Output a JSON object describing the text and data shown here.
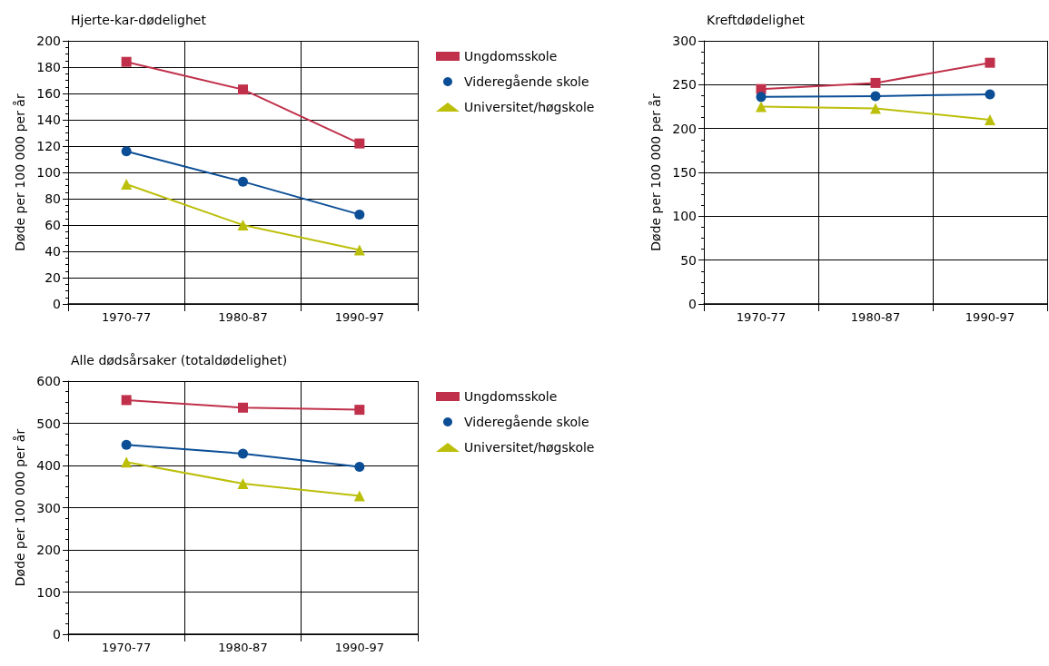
{
  "chart_data": [
    {
      "type": "line",
      "title": "Hjerte-kar-dødelighet",
      "ylabel": "Døde per 100 000 per år",
      "categories": [
        "1970-77",
        "1980-87",
        "1990-97"
      ],
      "ylim": [
        0,
        200
      ],
      "yticks": [
        0,
        20,
        40,
        60,
        80,
        100,
        120,
        140,
        160,
        180,
        200
      ],
      "grid": true,
      "legend": "right",
      "line_style": "solid",
      "series": [
        {
          "name": "Ungdomsskole",
          "color": "#c0304a",
          "marker": "square",
          "values": [
            184,
            163,
            122
          ]
        },
        {
          "name": "Videregående skole",
          "color": "#0b4e96",
          "marker": "circle",
          "values": [
            116,
            93,
            68
          ]
        },
        {
          "name": "Universitet/høgskole",
          "color": "#bcbf0a",
          "marker": "triangle",
          "values": [
            91,
            60,
            41
          ]
        }
      ]
    },
    {
      "type": "line",
      "title": "Kreftdødelighet",
      "ylabel": "Døde per 100 000 per år",
      "categories": [
        "1970-77",
        "1980-87",
        "1990-97"
      ],
      "ylim": [
        0,
        300
      ],
      "yticks": [
        0,
        50,
        100,
        150,
        200,
        250,
        300
      ],
      "grid": true,
      "line_style": "solid",
      "series": [
        {
          "color": "#c0304a",
          "marker": "square",
          "values": [
            245,
            252,
            275
          ]
        },
        {
          "color": "#0b4e96",
          "marker": "circle",
          "values": [
            236,
            237,
            239
          ]
        },
        {
          "color": "#bcbf0a",
          "marker": "triangle",
          "values": [
            225,
            223,
            210
          ]
        }
      ]
    },
    {
      "type": "line",
      "title": "Alle dødsårsaker (totaldødelighet)",
      "ylabel": "Døde per 100 000 per år",
      "categories": [
        "1970-77",
        "1980-87",
        "1990-97"
      ],
      "ylim": [
        0,
        600
      ],
      "yticks": [
        0,
        100,
        200,
        300,
        400,
        500,
        600
      ],
      "grid": true,
      "legend": "right",
      "line_style": "solid",
      "series": [
        {
          "name": "Ungdomsskole",
          "color": "#c0304a",
          "marker": "square",
          "values": [
            555,
            537,
            532
          ]
        },
        {
          "name": "Videregående skole",
          "color": "#0b4e96",
          "marker": "circle",
          "values": [
            449,
            428,
            397
          ]
        },
        {
          "name": "Universitet/høgskole",
          "color": "#bcbf0a",
          "marker": "triangle",
          "values": [
            408,
            357,
            328
          ]
        }
      ]
    }
  ]
}
